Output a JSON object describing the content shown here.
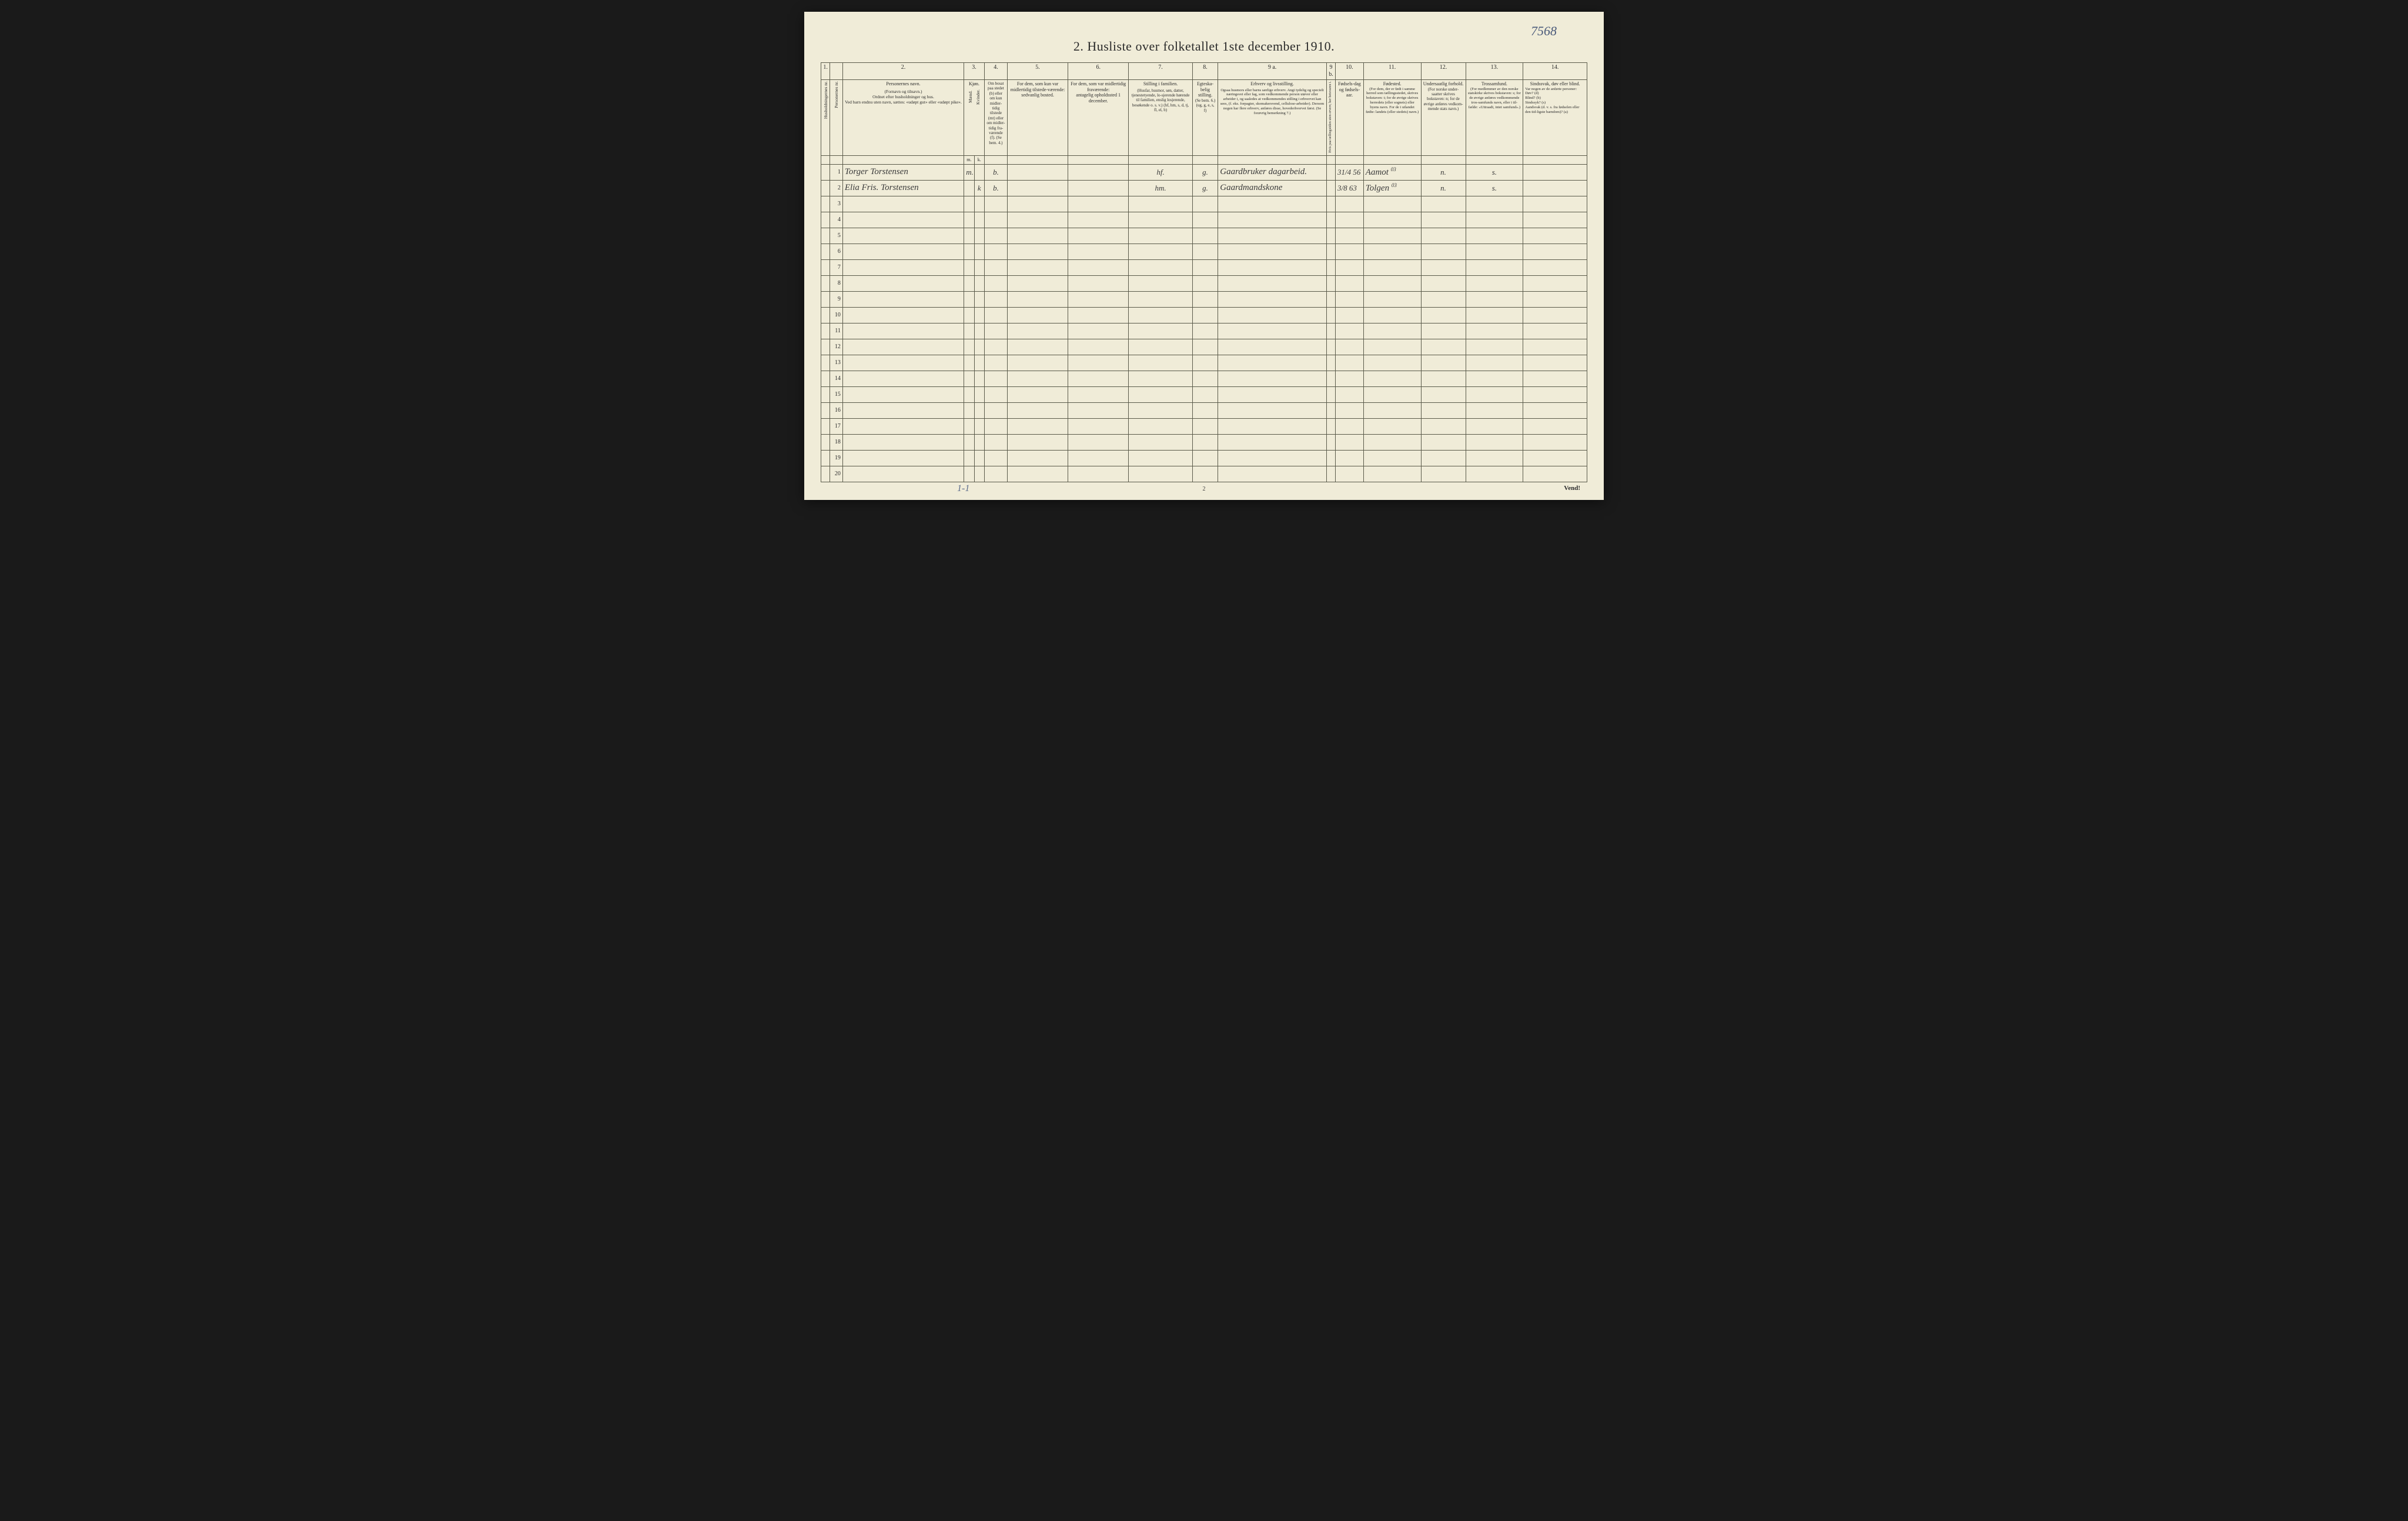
{
  "annotations": {
    "top_right": "7568",
    "bottom_left": "1-1"
  },
  "title": "2.  Husliste over folketallet 1ste december 1910.",
  "footer_page": "2",
  "vend": "Vend!",
  "colnums": [
    "1.",
    "",
    "2.",
    "3.",
    "4.",
    "5.",
    "6.",
    "7.",
    "8.",
    "9 a.",
    "9 b.",
    "10.",
    "11.",
    "12.",
    "13.",
    "14."
  ],
  "headers": {
    "c1": "Husholdningernes nr.",
    "c2": "Personernes nr.",
    "c3_title": "Personernes navn.",
    "c3_sub": "(Fornavn og tilnavn.)\nOrdnet efter husholdninger og hus.\nVed barn endnu uten navn, sættes: «udøpt gut» eller «udøpt pike».",
    "c4_title": "Kjøn.",
    "c4_m": "Mænd.",
    "c4_k": "Kvinder.",
    "c4_sub_m": "m.",
    "c4_sub_k": "k.",
    "c5": "Om bosat paa stedet (b) eller om kun midler-tidig tilstede (mt) eller om midler-tidig fra-værende (f). (Se bem. 4.)",
    "c6": "For dem, som kun var midlertidig tilstede-værende:\nsedvanlig bosted.",
    "c7": "For dem, som var midlertidig fraværende:\nantagelig opholdssted 1 december.",
    "c8_title": "Stilling i familien.",
    "c8_sub": "(Husfar, husmor, søn, datter, tjenestetyende, lo-sjerende hørende til familien, enslig losjerende, besøkende o. s. v.)\n(hf, hm, s, d, tj, fl, el, b)",
    "c9_title": "Egteska-belig stilling.",
    "c9_sub": "(Se bem. 6.)\n(ug, g, e, s, f)",
    "c10_title": "Erhverv og livsstilling.",
    "c10_sub": "Ogsaa husmors eller barns særlige erhverv. Angi tydelig og specielt næringsvei eller fag, som vedkommende person utøver eller arbeider i, og saaledes at vedkommendes stilling i erhvervet kan sees, (f. eks. forpagter, skomakersvend, cellulose-arbeider). Dersom nogen har flere erhverv, anføres disse, hovederhvervet først.\n(Se forøvrig bemerkning 7.)",
    "c10b": "Hvis paa tællingstiden uten erverv, her betsvaren i.",
    "c11": "Fødsels-dag og fødsels-aar.",
    "c12_title": "Fødested.",
    "c12_sub": "(For dem, der er født i samme herred som tællingsstedet, skrives bokstaven: t; for de øvrige skrives herredets (eller sognets) eller byens navn. For de i utlandet fødte: landets (eller stedets) navn.)",
    "c13_title": "Undersaatlig forhold.",
    "c13_sub": "(For norske under-saatter skrives bokstaven: n; for de øvrige anføres vedkom-mende stats navn.)",
    "c14_title": "Trossamfund.",
    "c14_sub": "(For medlemmer av den norske statskirke skrives bokstaven: s; for de øvrige anføres vedkommende tros-samfunds navn, eller i til-fælde: «Uttraadt, intet samfund».)",
    "c15_title": "Sindssvak, døv eller blind.",
    "c15_sub": "Var nogen av de anførte personer:\nDøv? (d)\nBlind? (b)\nSindssyk? (s)\nAandsvak (d. v. s. fra fødselen eller den tid-ligste barndom)? (a)"
  },
  "rows": [
    {
      "num": "1",
      "name": "Torger Torstensen",
      "sex_m": "m.",
      "sex_k": "",
      "bosat": "b.",
      "col6": "",
      "col7": "",
      "stilling": "hf.",
      "egte": "g.",
      "erhverv": "Gaardbruker dagarbeid.",
      "foedsel": "31/4 56",
      "foedested": "Aamot",
      "foedested_sup": "03",
      "under": "n.",
      "tros": "s.",
      "sinds": ""
    },
    {
      "num": "2",
      "name": "Elia Fris. Torstensen",
      "sex_m": "",
      "sex_k": "k",
      "bosat": "b.",
      "col6": "",
      "col7": "",
      "stilling": "hm.",
      "egte": "g.",
      "erhverv": "Gaardmandskone",
      "foedsel": "3/8 63",
      "foedested": "Tolgen",
      "foedested_sup": "03",
      "under": "n.",
      "tros": "s.",
      "sinds": ""
    }
  ],
  "empty_rows": [
    "3",
    "4",
    "5",
    "6",
    "7",
    "8",
    "9",
    "10",
    "11",
    "12",
    "13",
    "14",
    "15",
    "16",
    "17",
    "18",
    "19",
    "20"
  ],
  "styling": {
    "page_bg": "#f0ecd8",
    "border_color": "#5a5a4a",
    "text_color": "#2a2a2a",
    "handwriting_color": "#3a3a3a",
    "annotation_color": "#4a5a7a",
    "title_fontsize": 22,
    "header_fontsize": 8,
    "body_row_height": 27
  }
}
